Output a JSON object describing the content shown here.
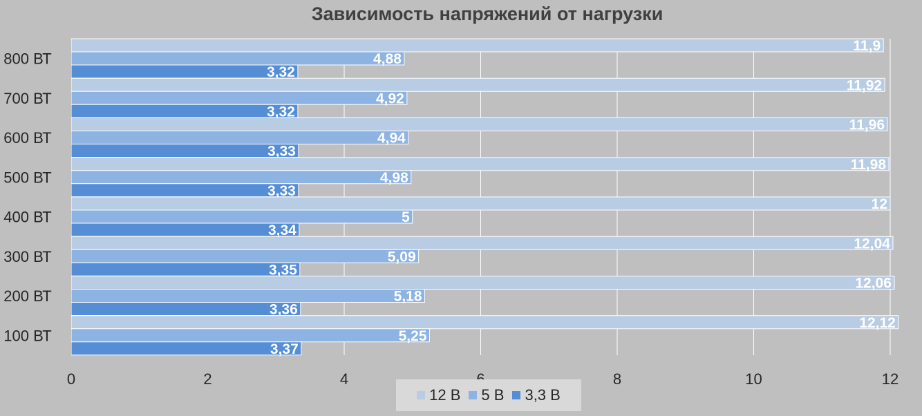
{
  "chart_data": {
    "type": "bar",
    "orientation": "horizontal",
    "title": "Зависимость напряжений от нагрузки",
    "categories": [
      "800 ВТ",
      "700 ВТ",
      "600 ВТ",
      "500 ВТ",
      "400 ВТ",
      "300 ВТ",
      "200 ВТ",
      "100 ВТ"
    ],
    "series": [
      {
        "name": "12 В",
        "color": "#b8cce4",
        "values": [
          11.9,
          11.92,
          11.96,
          11.98,
          12,
          12.04,
          12.06,
          12.12
        ],
        "labels": [
          "11,9",
          "11,92",
          "11,96",
          "11,98",
          "12",
          "12,04",
          "12,06",
          "12,12"
        ]
      },
      {
        "name": "5 В",
        "color": "#8db3e2",
        "values": [
          4.88,
          4.92,
          4.94,
          4.98,
          5,
          5.09,
          5.18,
          5.25
        ],
        "labels": [
          "4,88",
          "4,92",
          "4,94",
          "4,98",
          "5",
          "5,09",
          "5,18",
          "5,25"
        ]
      },
      {
        "name": "3,3 В",
        "color": "#558ed5",
        "values": [
          3.32,
          3.32,
          3.33,
          3.33,
          3.34,
          3.35,
          3.36,
          3.37
        ],
        "labels": [
          "3,32",
          "3,32",
          "3,33",
          "3,33",
          "3,34",
          "3,35",
          "3,36",
          "3,37"
        ]
      }
    ],
    "xlim": [
      0,
      12
    ],
    "x_ticks": [
      "0",
      "2",
      "4",
      "6",
      "8",
      "10",
      "12"
    ],
    "grid": true,
    "legend_position": "bottom"
  }
}
